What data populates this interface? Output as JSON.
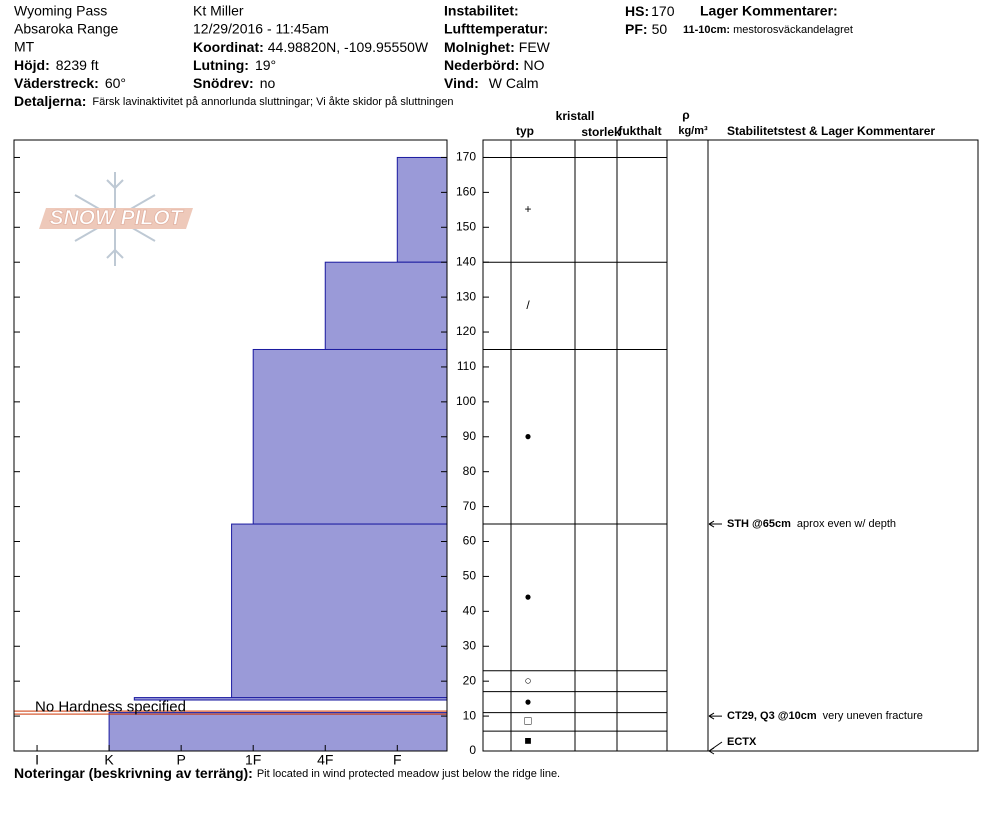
{
  "header": {
    "site": "Wyoming Pass",
    "range": "Absaroka Range",
    "state": "MT",
    "elevation": {
      "label": "Höjd:",
      "value": "8239 ft"
    },
    "aspect": {
      "label": "Väderstreck:",
      "value": "60°"
    },
    "observer": "Kt Miller",
    "datetime": "12/29/2016 - 11:45am",
    "coordinates": {
      "label": "Koordinat:",
      "value": "44.98820N, -109.95550W"
    },
    "slope": {
      "label": "Lutning:",
      "value": "19°"
    },
    "wind_loading": {
      "label": "Snödrev:",
      "value": "no"
    },
    "instability": {
      "label": "Instabilitet:"
    },
    "air_temp": {
      "label": "Lufttemperatur:"
    },
    "sky": {
      "label": "Molnighet:",
      "value": "FEW"
    },
    "precip": {
      "label": "Nederbörd:",
      "value": "NO"
    },
    "wind": {
      "label": "Vind:",
      "value": "W Calm"
    },
    "hs": {
      "label": "HS:",
      "value": "170"
    },
    "pf": {
      "label": "PF:",
      "value": "50"
    },
    "layer_comments_title": "Lager Kommentarer:",
    "layer_comment": {
      "label": "11-10cm:",
      "value": "mestorosväckandelagret"
    },
    "details": {
      "label": "Detaljerna:",
      "value": "Färsk lavinaktivitet på annorlunda sluttningar; Vi åkte skidor på sluttningen"
    }
  },
  "chart_data": {
    "type": "bar",
    "orientation": "horizontal",
    "logo": "SNOW PILOT",
    "xlim": [
      0.68,
      6.69
    ],
    "xticks": [
      {
        "value": 1,
        "label": "I"
      },
      {
        "value": 2,
        "label": "K"
      },
      {
        "value": 3,
        "label": "P"
      },
      {
        "value": 4,
        "label": "1F"
      },
      {
        "value": 5,
        "label": "4F"
      },
      {
        "value": 6,
        "label": "F"
      }
    ],
    "ylim": [
      0,
      175
    ],
    "yticks": [
      0,
      10,
      20,
      30,
      40,
      50,
      60,
      70,
      80,
      90,
      100,
      110,
      120,
      130,
      140,
      150,
      160,
      170
    ],
    "layer_top": [
      170,
      140,
      115,
      65,
      15.3,
      11
    ],
    "layer_bottom": [
      140,
      115,
      65,
      15,
      14.6,
      0
    ],
    "hardness": [
      6,
      5,
      4,
      3.7,
      2.35,
      2
    ],
    "color": "#9a9ad8",
    "annotation": {
      "text": "No Hardness specified",
      "depth": 11,
      "color": "#cc3300"
    }
  },
  "profile": {
    "column_headers": {
      "type": "typ",
      "crystal": "kristall",
      "size": "storlek",
      "moisture": "fukthalt",
      "rho": "ρ",
      "density_unit": "kg/m³",
      "tests": "Stabilitetstest & Lager Kommentarer"
    },
    "boundaries": [
      170,
      140,
      115,
      65,
      23,
      17,
      11,
      5.7
    ],
    "grain_symbols": [
      "+",
      "/",
      "●",
      "●",
      "○",
      "●",
      "□",
      "■"
    ],
    "grain_depth": [
      155,
      127.5,
      90,
      44,
      20,
      14,
      8.5,
      2.7
    ],
    "tests": [
      {
        "label": "STH @65cm",
        "comment": "aprox even w/ depth",
        "depth": 65
      },
      {
        "label": "CT29, Q3 @10cm",
        "comment": "very uneven fracture",
        "depth": 10
      },
      {
        "label": "ECTX",
        "depth": 0
      }
    ]
  },
  "notes": {
    "label": "Noteringar (beskrivning av terräng):",
    "value": "Pit located in wind protected meadow just below the ridge line."
  }
}
